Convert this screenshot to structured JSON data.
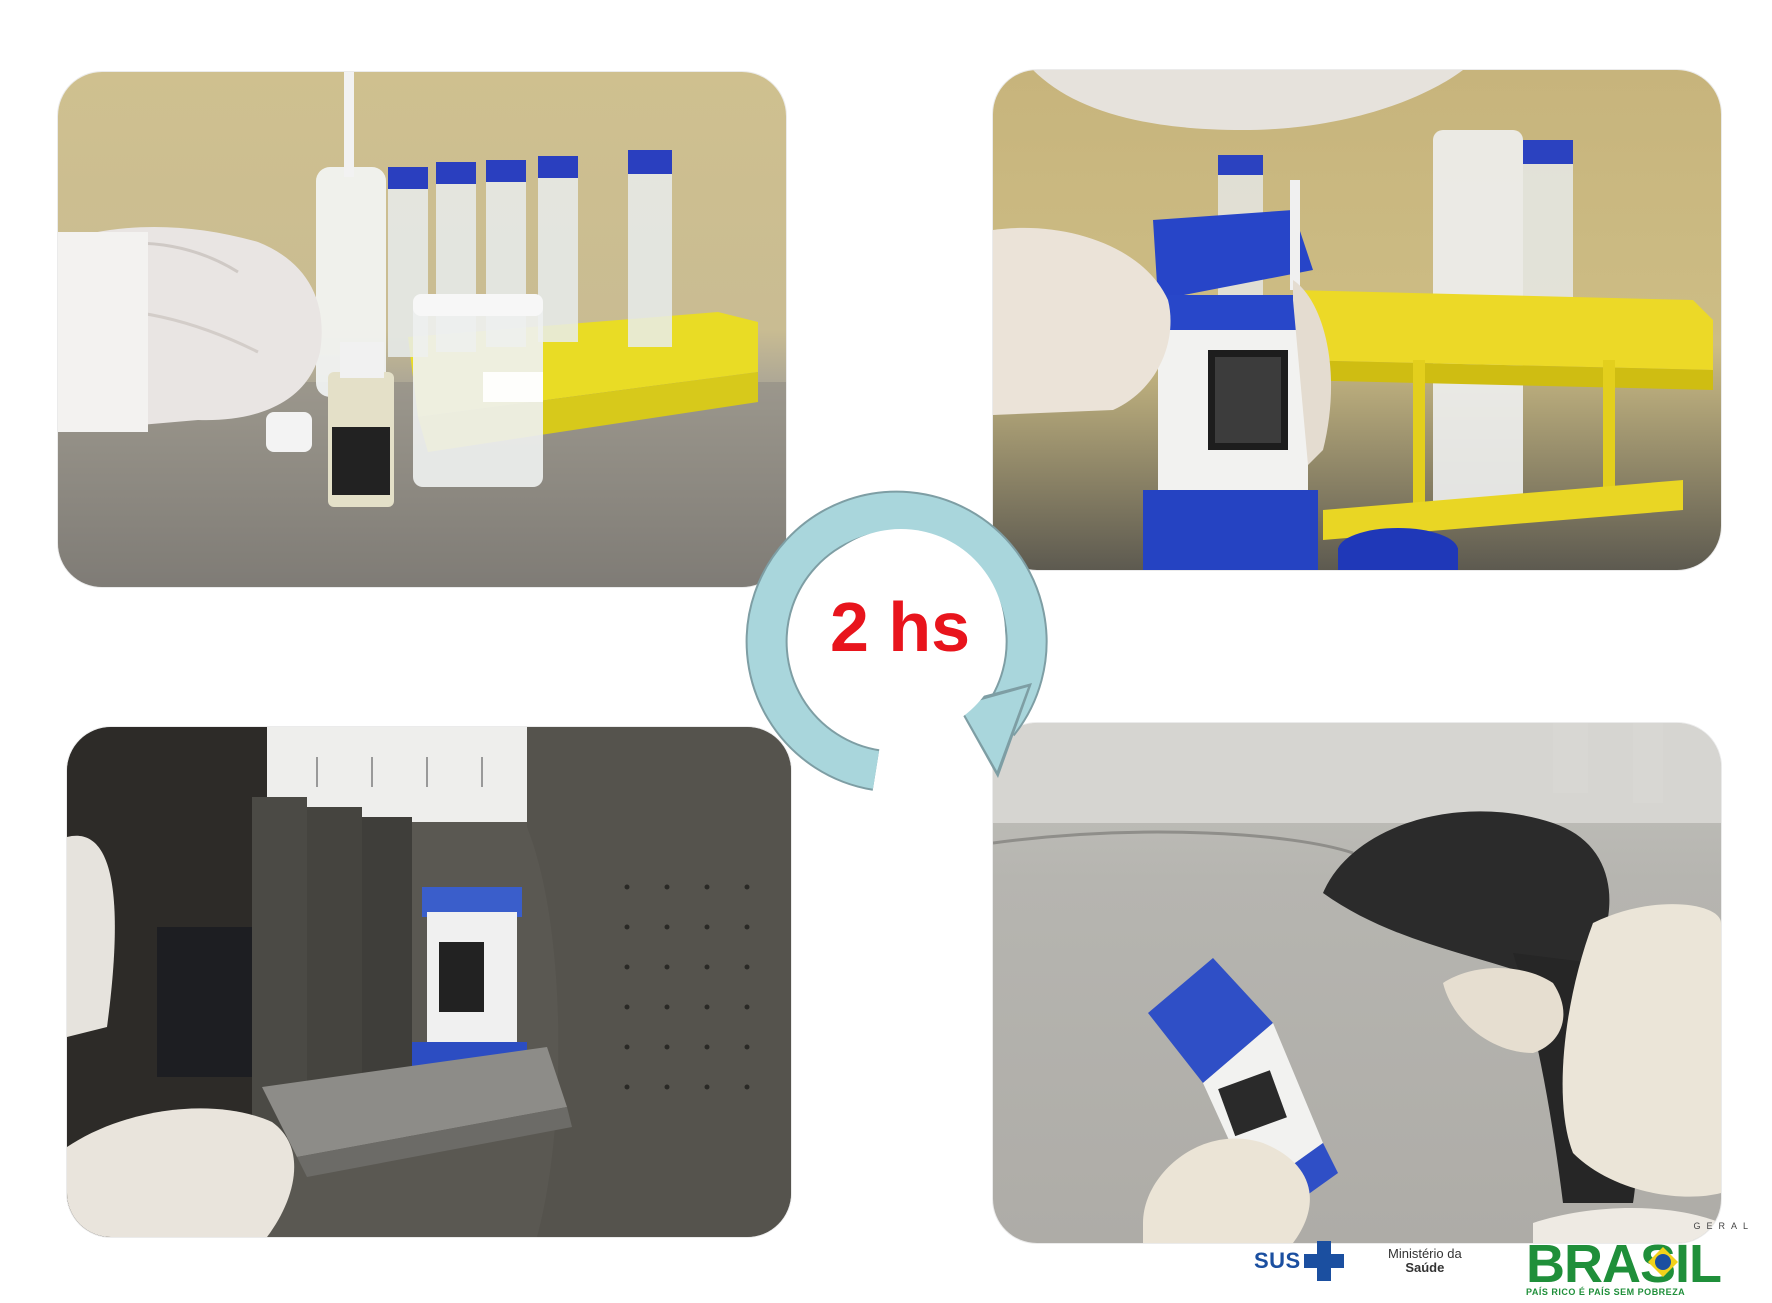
{
  "cycle": {
    "label": "2 hs",
    "arrow_color": "#a9d6dc",
    "label_color": "#e8141c"
  },
  "photos": [
    {
      "id": "photo-1",
      "subject": "sample-preparation"
    },
    {
      "id": "photo-2",
      "subject": "cartridge-loading"
    },
    {
      "id": "photo-3",
      "subject": "instrument-insertion"
    },
    {
      "id": "photo-4",
      "subject": "barcode-scanning"
    }
  ],
  "footer": {
    "sus": "SUS",
    "ministerio_line1": "Ministério da",
    "ministerio_line2": "Saúde",
    "brasil_top": "GERAL",
    "brasil_word": "BRASIL",
    "brasil_slogan": "PAÍS RICO É PAÍS SEM POBREZA",
    "brand_green": "#1f8f3a",
    "brand_blue": "#1b4fa0"
  }
}
